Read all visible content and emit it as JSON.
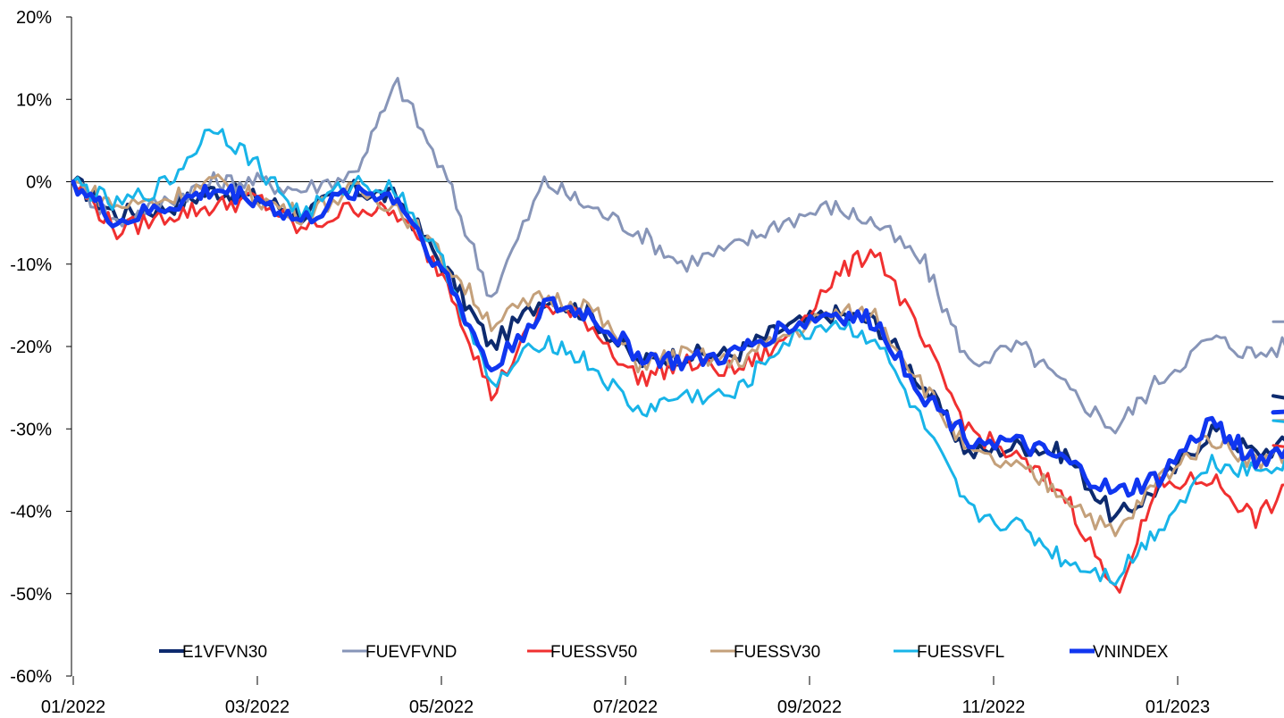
{
  "chart_data": {
    "type": "line",
    "title": "",
    "xlabel": "",
    "ylabel": "",
    "x_ticks": [
      "01/2022",
      "03/2022",
      "05/2022",
      "07/2022",
      "09/2022",
      "11/2022",
      "01/2023"
    ],
    "y_ticks": [
      "20%",
      "10%",
      "0%",
      "-10%",
      "-20%",
      "-30%",
      "-40%",
      "-50%",
      "-60%"
    ],
    "ylim": [
      -60,
      20
    ],
    "y_unit": "%",
    "x_range": [
      "01/2022",
      "03/2023"
    ],
    "grid": false,
    "zero_line": true,
    "legend_position": "bottom-inside",
    "x": [
      "2022-01-01",
      "2022-01-15",
      "2022-02-01",
      "2022-02-15",
      "2022-03-01",
      "2022-03-15",
      "2022-04-01",
      "2022-04-15",
      "2022-05-01",
      "2022-05-15",
      "2022-06-01",
      "2022-06-15",
      "2022-07-01",
      "2022-07-15",
      "2022-08-01",
      "2022-08-15",
      "2022-09-01",
      "2022-09-15",
      "2022-10-01",
      "2022-10-15",
      "2022-11-01",
      "2022-11-15",
      "2022-12-01",
      "2022-12-15",
      "2023-01-01",
      "2023-01-15",
      "2023-02-01",
      "2023-02-15"
    ],
    "series": [
      {
        "name": "E1VFVN30",
        "color": "#0d2a6e",
        "width": 4,
        "values": [
          0,
          -4,
          -3,
          -1,
          -2,
          -4,
          -1,
          -2,
          -11,
          -20,
          -14,
          -16,
          -22,
          -21,
          -21,
          -18,
          -16,
          -17,
          -25,
          -33,
          -32,
          -33,
          -41,
          -37,
          -30,
          -33,
          -31,
          -26
        ]
      },
      {
        "name": "FUEVFVND",
        "color": "#8795b8",
        "width": 3,
        "values": [
          0,
          -5,
          -2,
          0,
          0,
          -1,
          1,
          12,
          0,
          -14,
          0,
          -3,
          -6,
          -10,
          -8,
          -5,
          -3,
          -5,
          -10,
          -22,
          -20,
          -25,
          -30,
          -24,
          -19,
          -21,
          -19,
          -17
        ]
      },
      {
        "name": "FUESSV50",
        "color": "#f03030",
        "width": 3,
        "values": [
          0,
          -6,
          -4,
          -3,
          -2,
          -6,
          -3,
          -4,
          -12,
          -26,
          -15,
          -17,
          -24,
          -22,
          -23,
          -20,
          -12,
          -8,
          -20,
          -30,
          -34,
          -38,
          -50,
          -37,
          -36,
          -41,
          -35,
          -32
        ]
      },
      {
        "name": "FUESSV30",
        "color": "#c4a07a",
        "width": 3,
        "values": [
          0,
          -3,
          -2,
          0,
          -2,
          -4,
          -1,
          -3,
          -10,
          -17,
          -14,
          -15,
          -22,
          -21,
          -22,
          -19,
          -16,
          -16,
          -25,
          -33,
          -35,
          -38,
          -43,
          -36,
          -31,
          -34,
          -32,
          -29
        ]
      },
      {
        "name": "FUESSVFL",
        "color": "#18b4e8",
        "width": 3,
        "values": [
          0,
          -3,
          0,
          7,
          2,
          -4,
          0,
          -1,
          -11,
          -25,
          -19,
          -22,
          -28,
          -26,
          -26,
          -20,
          -17,
          -19,
          -30,
          -40,
          -42,
          -46,
          -48,
          -42,
          -34,
          -35,
          -33,
          -29
        ]
      },
      {
        "name": "VNINDEX",
        "color": "#1036f0",
        "width": 5,
        "values": [
          0,
          -5,
          -3,
          -1,
          -2,
          -5,
          -1,
          -2,
          -12,
          -23,
          -15,
          -16,
          -21,
          -22,
          -21,
          -18,
          -16,
          -17,
          -26,
          -31,
          -32,
          -34,
          -38,
          -36,
          -29,
          -34,
          -31,
          -28
        ]
      }
    ]
  }
}
